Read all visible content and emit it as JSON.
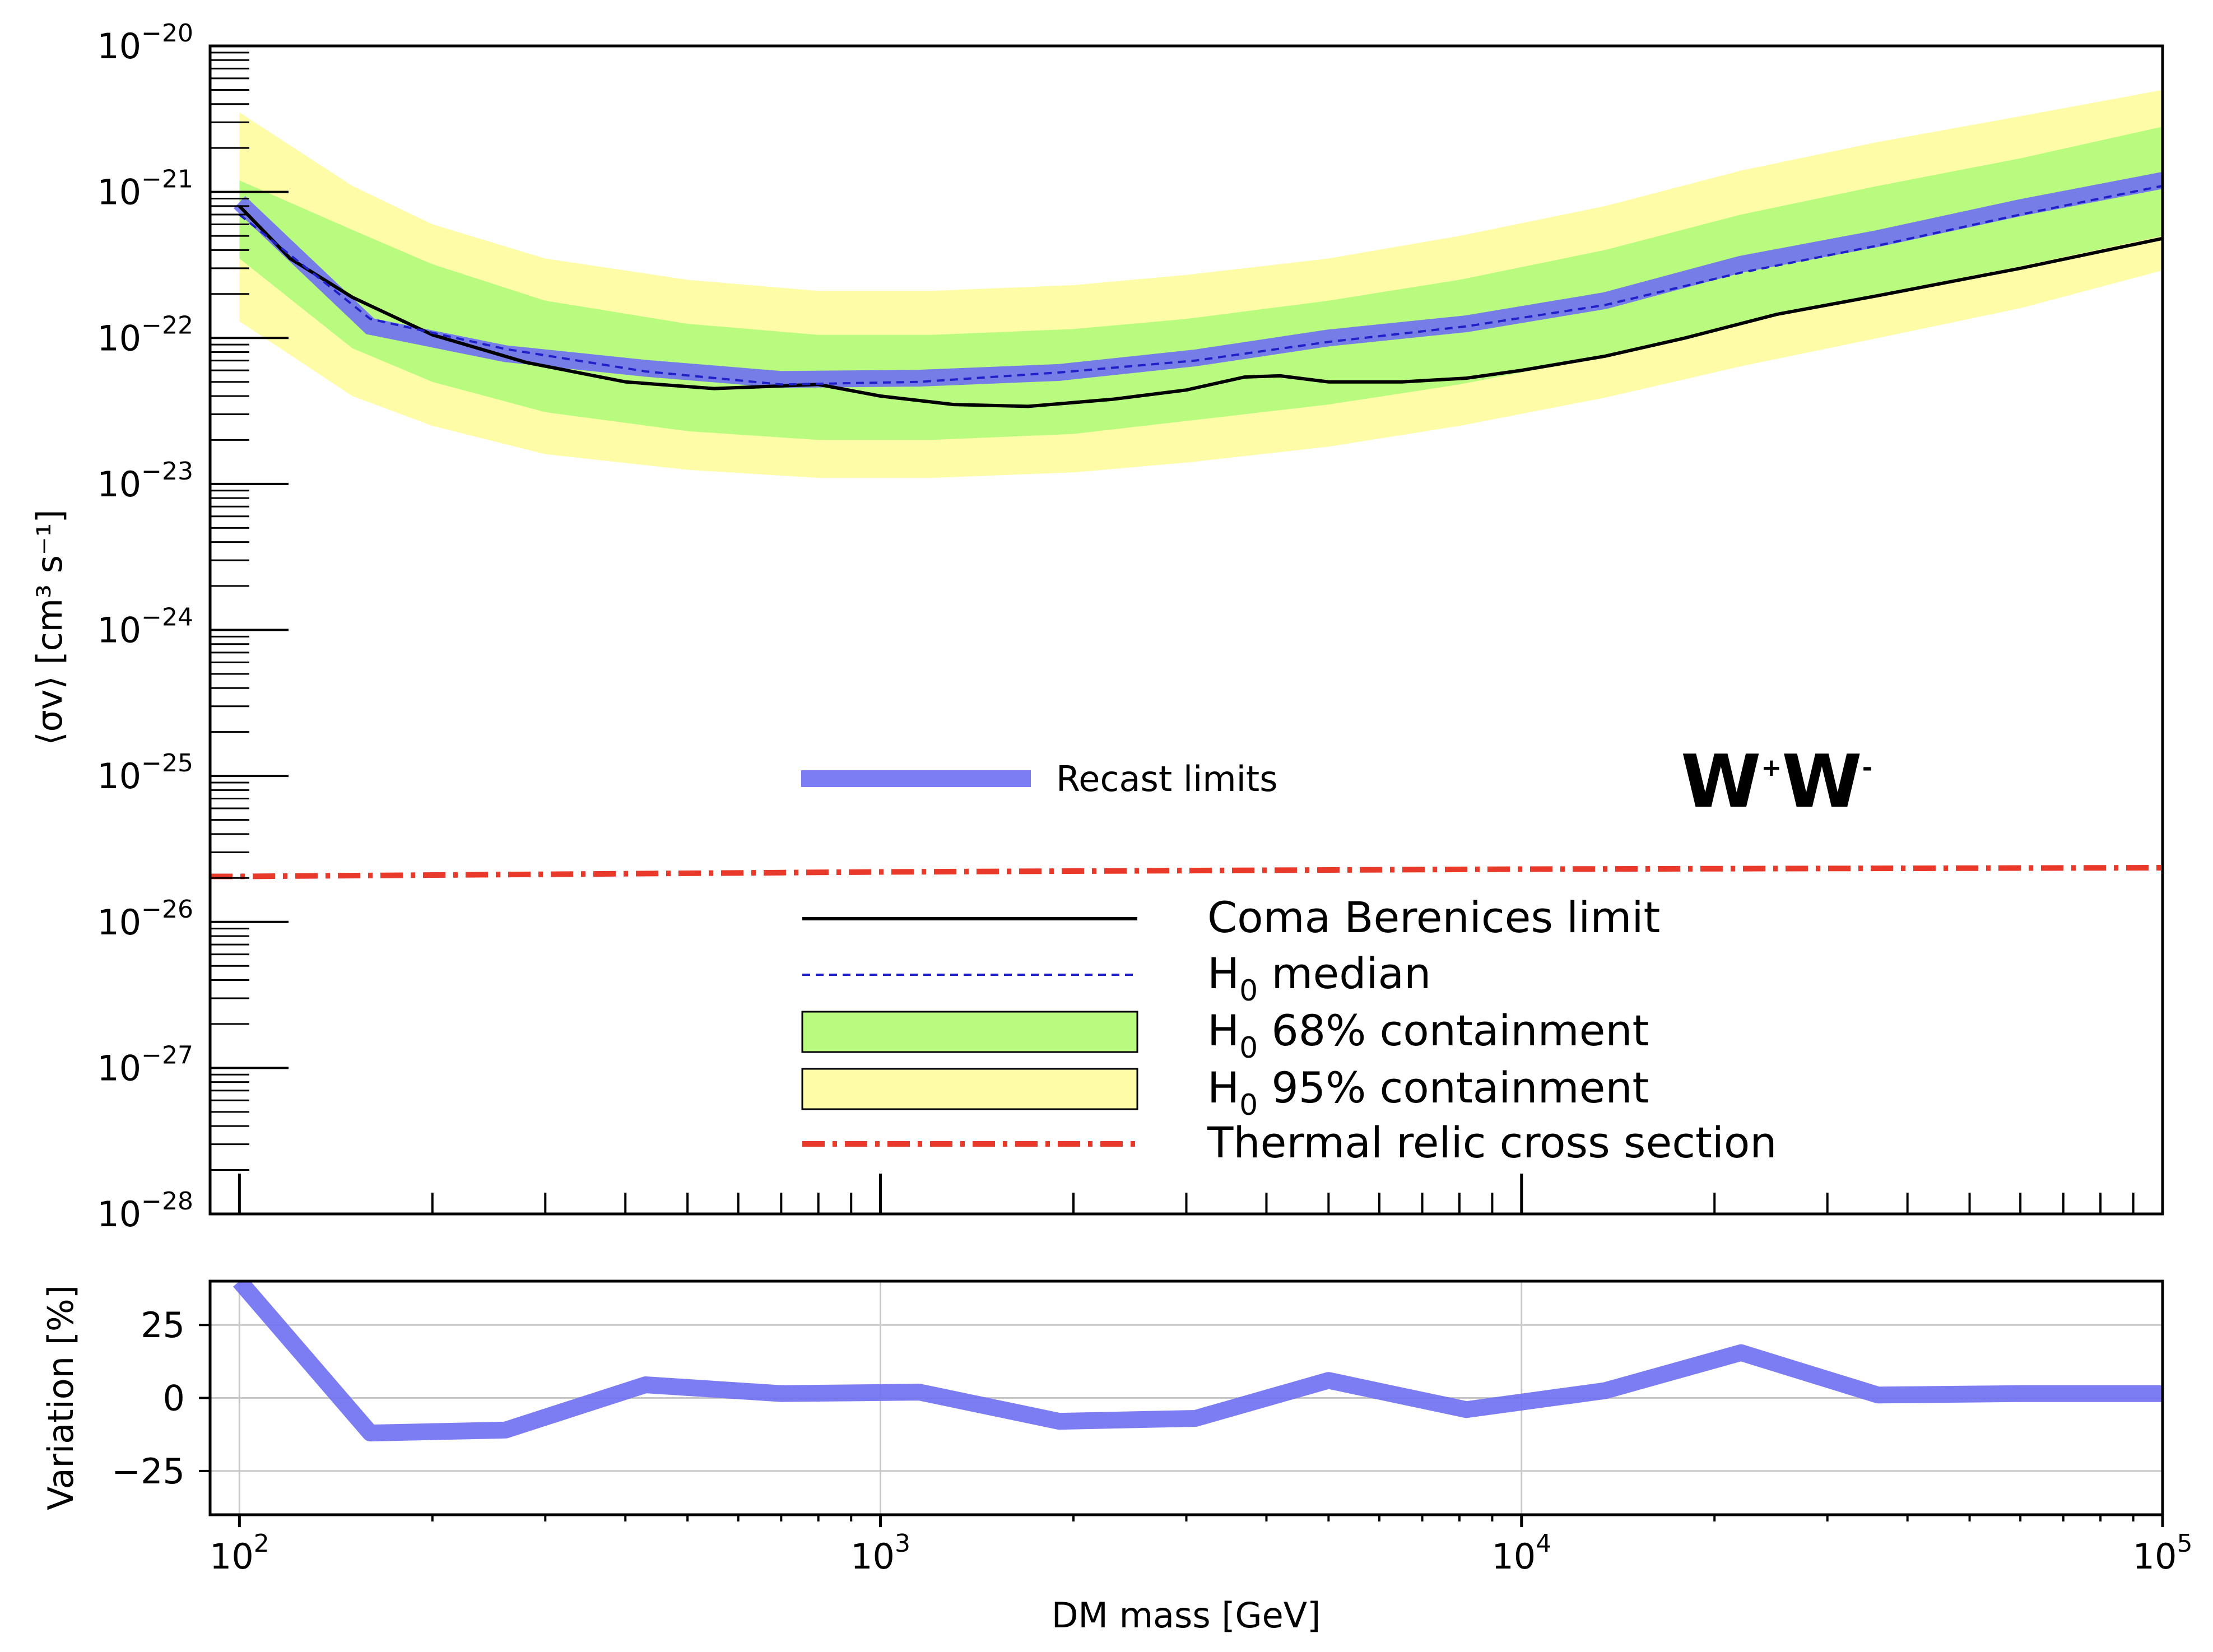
{
  "chart_data": [
    {
      "type": "line",
      "panel": "upper",
      "ylabel": "⟨σv⟩ [cm³ s⁻¹]",
      "yscale": "log",
      "xscale": "log",
      "xlim": [
        90,
        100000
      ],
      "ylim": [
        1e-28,
        1e-20
      ],
      "y_tick_labels": [
        {
          "base": "10",
          "exp": "−28"
        },
        {
          "base": "10",
          "exp": "−27"
        },
        {
          "base": "10",
          "exp": "−26"
        },
        {
          "base": "10",
          "exp": "−25"
        },
        {
          "base": "10",
          "exp": "−24"
        },
        {
          "base": "10",
          "exp": "−23"
        },
        {
          "base": "10",
          "exp": "−22"
        },
        {
          "base": "10",
          "exp": "−21"
        },
        {
          "base": "10",
          "exp": "−20"
        }
      ],
      "annotation": {
        "text": "W",
        "sup1": "+",
        "mid": "W",
        "sup2": "-"
      },
      "series": [
        {
          "name": "Recast limits",
          "color": "#6f6ff2",
          "x": [
            100,
            160,
            260,
            430,
            700,
            1150,
            1900,
            3100,
            5000,
            8200,
            13500,
            22000,
            36000,
            60000,
            100000
          ],
          "y": [
            8.5e-22,
            1.2e-22,
            7.8e-23,
            6.2e-23,
            5.2e-23,
            5.3e-23,
            5.8e-23,
            7.3e-23,
            1e-22,
            1.25e-22,
            1.8e-22,
            3.2e-22,
            4.8e-22,
            7.8e-22,
            1.2e-21
          ]
        },
        {
          "name": "Coma Berenices limit",
          "color": "#000000",
          "x": [
            100,
            120,
            150,
            200,
            280,
            400,
            550,
            800,
            1000,
            1300,
            1700,
            2300,
            3000,
            3700,
            4200,
            5000,
            6500,
            8200,
            10000,
            13500,
            18000,
            25000,
            36000,
            60000,
            100000
          ],
          "y": [
            8e-22,
            3.5e-22,
            1.9e-22,
            1.05e-22,
            6.8e-23,
            5e-23,
            4.5e-23,
            4.8e-23,
            4e-23,
            3.5e-23,
            3.4e-23,
            3.8e-23,
            4.4e-23,
            5.4e-23,
            5.5e-23,
            5e-23,
            5e-23,
            5.3e-23,
            6e-23,
            7.5e-23,
            1e-22,
            1.45e-22,
            1.95e-22,
            3e-22,
            4.8e-22
          ]
        },
        {
          "name": "H0 median",
          "color": "#2020c8",
          "x": [
            100,
            160,
            260,
            430,
            700,
            1150,
            1900,
            3100,
            5000,
            8200,
            13500,
            22000,
            36000,
            60000,
            100000
          ],
          "y": [
            7e-22,
            1.35e-22,
            8.4e-23,
            5.9e-23,
            4.8e-23,
            5e-23,
            5.8e-23,
            7e-23,
            9.4e-23,
            1.2e-22,
            1.68e-22,
            2.8e-22,
            4.3e-22,
            7e-22,
            1.1e-21
          ]
        },
        {
          "name": "H0 68% containment",
          "color": "#b9fb7f",
          "x": [
            100,
            150,
            200,
            300,
            500,
            800,
            1200,
            2000,
            3000,
            5000,
            8000,
            13500,
            22000,
            36000,
            60000,
            100000
          ],
          "upper": [
            1.2e-21,
            5.5e-22,
            3.2e-22,
            1.8e-22,
            1.25e-22,
            1.05e-22,
            1.05e-22,
            1.15e-22,
            1.35e-22,
            1.8e-22,
            2.5e-22,
            4e-22,
            7e-22,
            1.1e-21,
            1.7e-21,
            2.8e-21
          ],
          "lower": [
            3.5e-22,
            8.5e-23,
            5e-23,
            3.1e-23,
            2.3e-23,
            2e-23,
            2e-23,
            2.2e-23,
            2.7e-23,
            3.5e-23,
            4.8e-23,
            7.5e-23,
            1.25e-22,
            2e-22,
            3.1e-22,
            5e-22
          ]
        },
        {
          "name": "H0 95% containment",
          "color": "#fefca7",
          "x": [
            100,
            150,
            200,
            300,
            500,
            800,
            1200,
            2000,
            3000,
            5000,
            8000,
            13500,
            22000,
            36000,
            60000,
            100000
          ],
          "upper": [
            3.5e-21,
            1.1e-21,
            6e-22,
            3.5e-22,
            2.5e-22,
            2.1e-22,
            2.1e-22,
            2.3e-22,
            2.7e-22,
            3.5e-22,
            5e-22,
            8e-22,
            1.4e-21,
            2.2e-21,
            3.3e-21,
            5e-21
          ],
          "lower": [
            1.3e-22,
            4e-23,
            2.5e-23,
            1.6e-23,
            1.25e-23,
            1.1e-23,
            1.1e-23,
            1.2e-23,
            1.4e-23,
            1.8e-23,
            2.5e-23,
            3.9e-23,
            6.4e-23,
            1e-22,
            1.6e-22,
            2.9e-22
          ]
        },
        {
          "name": "Thermal relic cross section",
          "color": "#e8392a",
          "x": [
            90,
            100,
            1000,
            10000,
            100000
          ],
          "y": [
            2.05e-26,
            2.05e-26,
            2.2e-26,
            2.3e-26,
            2.35e-26
          ]
        }
      ],
      "legend_upper": [
        {
          "label": "Recast limits"
        }
      ],
      "legend_lower": [
        {
          "label": "Coma Berenices limit"
        },
        {
          "base": "H",
          "sub": "0",
          "rest": " median"
        },
        {
          "base": "H",
          "sub": "0",
          "rest": " 68% containment"
        },
        {
          "base": "H",
          "sub": "0",
          "rest": " 95% containment"
        },
        {
          "label": "Thermal relic cross section"
        }
      ]
    },
    {
      "type": "line",
      "panel": "lower",
      "xlabel": "DM mass [GeV]",
      "ylabel": "Variation [%]",
      "xscale": "log",
      "xlim": [
        90,
        100000
      ],
      "ylim": [
        -40,
        40
      ],
      "grid": true,
      "y_ticks": [
        25,
        0,
        -25
      ],
      "y_tick_labels": [
        "25",
        "0",
        "−25"
      ],
      "x_tick_labels": [
        {
          "base": "10",
          "exp": "2"
        },
        {
          "base": "10",
          "exp": "3"
        },
        {
          "base": "10",
          "exp": "4"
        },
        {
          "base": "10",
          "exp": "5"
        }
      ],
      "series": [
        {
          "name": "Recast limits",
          "color": "#6f6ff2",
          "x": [
            100,
            160,
            260,
            430,
            700,
            1150,
            1900,
            3100,
            5000,
            8200,
            13500,
            22000,
            36000,
            60000,
            100000
          ],
          "y": [
            40,
            -12,
            -11,
            4.5,
            1.5,
            2,
            -8,
            -7,
            6,
            -4,
            2.5,
            15.5,
            1,
            1.5,
            1.5
          ]
        }
      ]
    }
  ]
}
